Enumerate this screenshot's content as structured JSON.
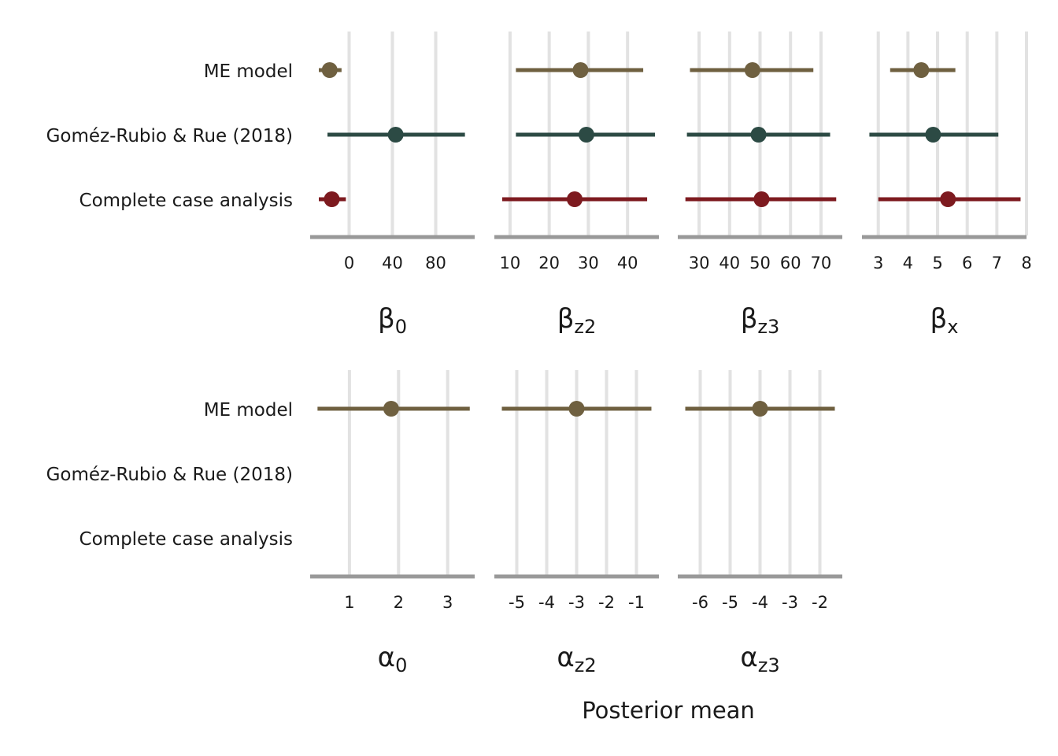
{
  "chart_data": {
    "type": "forest",
    "xlabel": "Posterior mean",
    "models": [
      "ME model",
      "Goméz-Rubio & Rue (2018)",
      "Complete case analysis"
    ],
    "colors": {
      "ME model": "#6f6040",
      "Goméz-Rubio & Rue (2018)": "#2c4a44",
      "Complete case analysis": "#7d1a1f"
    },
    "grid": true,
    "panels": [
      {
        "symbol": "β",
        "subscript": "0",
        "xlim": [
          -36,
          116
        ],
        "ticks": [
          0,
          40,
          80
        ],
        "estimates": [
          {
            "model": "ME model",
            "mean": -18,
            "lower": -28,
            "upper": -7
          },
          {
            "model": "Goméz-Rubio & Rue (2018)",
            "mean": 43,
            "lower": -20,
            "upper": 107
          },
          {
            "model": "Complete case analysis",
            "mean": -16,
            "lower": -28,
            "upper": -3
          }
        ]
      },
      {
        "symbol": "β",
        "subscript": "z2",
        "xlim": [
          6,
          48
        ],
        "ticks": [
          10,
          20,
          30,
          40
        ],
        "estimates": [
          {
            "model": "ME model",
            "mean": 28,
            "lower": 11.5,
            "upper": 44
          },
          {
            "model": "Goméz-Rubio & Rue (2018)",
            "mean": 29.5,
            "lower": 11.5,
            "upper": 47
          },
          {
            "model": "Complete case analysis",
            "mean": 26.5,
            "lower": 8,
            "upper": 45
          }
        ]
      },
      {
        "symbol": "β",
        "subscript": "z3",
        "xlim": [
          23,
          77
        ],
        "ticks": [
          30,
          40,
          50,
          60,
          70
        ],
        "estimates": [
          {
            "model": "ME model",
            "mean": 47.5,
            "lower": 27,
            "upper": 67.5
          },
          {
            "model": "Goméz-Rubio & Rue (2018)",
            "mean": 49.5,
            "lower": 26,
            "upper": 73
          },
          {
            "model": "Complete case analysis",
            "mean": 50.5,
            "lower": 25.5,
            "upper": 75
          }
        ]
      },
      {
        "symbol": "β",
        "subscript": "x",
        "xlim": [
          2.45,
          8
        ],
        "ticks": [
          3,
          4,
          5,
          6,
          7,
          8
        ],
        "estimates": [
          {
            "model": "ME model",
            "mean": 4.45,
            "lower": 3.4,
            "upper": 5.6
          },
          {
            "model": "Goméz-Rubio & Rue (2018)",
            "mean": 4.85,
            "lower": 2.7,
            "upper": 7.05
          },
          {
            "model": "Complete case analysis",
            "mean": 5.35,
            "lower": 3,
            "upper": 7.8
          }
        ]
      },
      {
        "symbol": "α",
        "subscript": "0",
        "xlim": [
          0.2,
          3.55
        ],
        "ticks": [
          1,
          2,
          3
        ],
        "estimates": [
          {
            "model": "ME model",
            "mean": 1.85,
            "lower": 0.35,
            "upper": 3.45
          }
        ]
      },
      {
        "symbol": "α",
        "subscript": "z2",
        "xlim": [
          -5.75,
          -0.25
        ],
        "ticks": [
          -5,
          -4,
          -3,
          -2,
          -1
        ],
        "estimates": [
          {
            "model": "ME model",
            "mean": -3,
            "lower": -5.5,
            "upper": -0.5
          }
        ]
      },
      {
        "symbol": "α",
        "subscript": "z3",
        "xlim": [
          -6.75,
          -1.25
        ],
        "ticks": [
          -6,
          -5,
          -4,
          -3,
          -2
        ],
        "estimates": [
          {
            "model": "ME model",
            "mean": -4,
            "lower": -6.5,
            "upper": -1.5
          }
        ]
      }
    ]
  }
}
